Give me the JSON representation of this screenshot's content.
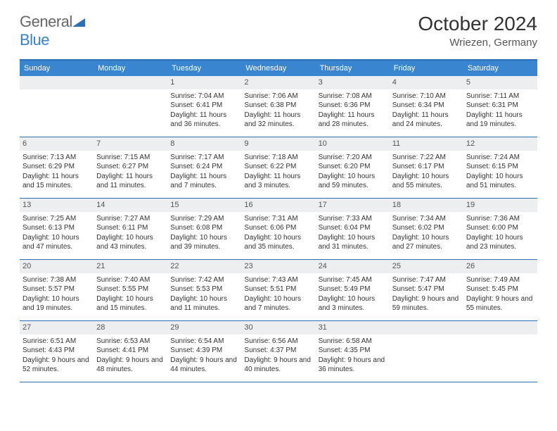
{
  "brand": {
    "part1": "General",
    "part2": "Blue"
  },
  "title": "October 2024",
  "location": "Wriezen, Germany",
  "header_bg": "#3a85d0",
  "border_color": "#2d6eb5",
  "daynum_bg": "#eceef0",
  "weekdays": [
    "Sunday",
    "Monday",
    "Tuesday",
    "Wednesday",
    "Thursday",
    "Friday",
    "Saturday"
  ],
  "weeks": [
    [
      null,
      null,
      {
        "n": "1",
        "sr": "7:04 AM",
        "ss": "6:41 PM",
        "dl": "11 hours and 36 minutes."
      },
      {
        "n": "2",
        "sr": "7:06 AM",
        "ss": "6:38 PM",
        "dl": "11 hours and 32 minutes."
      },
      {
        "n": "3",
        "sr": "7:08 AM",
        "ss": "6:36 PM",
        "dl": "11 hours and 28 minutes."
      },
      {
        "n": "4",
        "sr": "7:10 AM",
        "ss": "6:34 PM",
        "dl": "11 hours and 24 minutes."
      },
      {
        "n": "5",
        "sr": "7:11 AM",
        "ss": "6:31 PM",
        "dl": "11 hours and 19 minutes."
      }
    ],
    [
      {
        "n": "6",
        "sr": "7:13 AM",
        "ss": "6:29 PM",
        "dl": "11 hours and 15 minutes."
      },
      {
        "n": "7",
        "sr": "7:15 AM",
        "ss": "6:27 PM",
        "dl": "11 hours and 11 minutes."
      },
      {
        "n": "8",
        "sr": "7:17 AM",
        "ss": "6:24 PM",
        "dl": "11 hours and 7 minutes."
      },
      {
        "n": "9",
        "sr": "7:18 AM",
        "ss": "6:22 PM",
        "dl": "11 hours and 3 minutes."
      },
      {
        "n": "10",
        "sr": "7:20 AM",
        "ss": "6:20 PM",
        "dl": "10 hours and 59 minutes."
      },
      {
        "n": "11",
        "sr": "7:22 AM",
        "ss": "6:17 PM",
        "dl": "10 hours and 55 minutes."
      },
      {
        "n": "12",
        "sr": "7:24 AM",
        "ss": "6:15 PM",
        "dl": "10 hours and 51 minutes."
      }
    ],
    [
      {
        "n": "13",
        "sr": "7:25 AM",
        "ss": "6:13 PM",
        "dl": "10 hours and 47 minutes."
      },
      {
        "n": "14",
        "sr": "7:27 AM",
        "ss": "6:11 PM",
        "dl": "10 hours and 43 minutes."
      },
      {
        "n": "15",
        "sr": "7:29 AM",
        "ss": "6:08 PM",
        "dl": "10 hours and 39 minutes."
      },
      {
        "n": "16",
        "sr": "7:31 AM",
        "ss": "6:06 PM",
        "dl": "10 hours and 35 minutes."
      },
      {
        "n": "17",
        "sr": "7:33 AM",
        "ss": "6:04 PM",
        "dl": "10 hours and 31 minutes."
      },
      {
        "n": "18",
        "sr": "7:34 AM",
        "ss": "6:02 PM",
        "dl": "10 hours and 27 minutes."
      },
      {
        "n": "19",
        "sr": "7:36 AM",
        "ss": "6:00 PM",
        "dl": "10 hours and 23 minutes."
      }
    ],
    [
      {
        "n": "20",
        "sr": "7:38 AM",
        "ss": "5:57 PM",
        "dl": "10 hours and 19 minutes."
      },
      {
        "n": "21",
        "sr": "7:40 AM",
        "ss": "5:55 PM",
        "dl": "10 hours and 15 minutes."
      },
      {
        "n": "22",
        "sr": "7:42 AM",
        "ss": "5:53 PM",
        "dl": "10 hours and 11 minutes."
      },
      {
        "n": "23",
        "sr": "7:43 AM",
        "ss": "5:51 PM",
        "dl": "10 hours and 7 minutes."
      },
      {
        "n": "24",
        "sr": "7:45 AM",
        "ss": "5:49 PM",
        "dl": "10 hours and 3 minutes."
      },
      {
        "n": "25",
        "sr": "7:47 AM",
        "ss": "5:47 PM",
        "dl": "9 hours and 59 minutes."
      },
      {
        "n": "26",
        "sr": "7:49 AM",
        "ss": "5:45 PM",
        "dl": "9 hours and 55 minutes."
      }
    ],
    [
      {
        "n": "27",
        "sr": "6:51 AM",
        "ss": "4:43 PM",
        "dl": "9 hours and 52 minutes."
      },
      {
        "n": "28",
        "sr": "6:53 AM",
        "ss": "4:41 PM",
        "dl": "9 hours and 48 minutes."
      },
      {
        "n": "29",
        "sr": "6:54 AM",
        "ss": "4:39 PM",
        "dl": "9 hours and 44 minutes."
      },
      {
        "n": "30",
        "sr": "6:56 AM",
        "ss": "4:37 PM",
        "dl": "9 hours and 40 minutes."
      },
      {
        "n": "31",
        "sr": "6:58 AM",
        "ss": "4:35 PM",
        "dl": "9 hours and 36 minutes."
      },
      null,
      null
    ]
  ],
  "labels": {
    "sunrise": "Sunrise:",
    "sunset": "Sunset:",
    "daylight": "Daylight:"
  }
}
